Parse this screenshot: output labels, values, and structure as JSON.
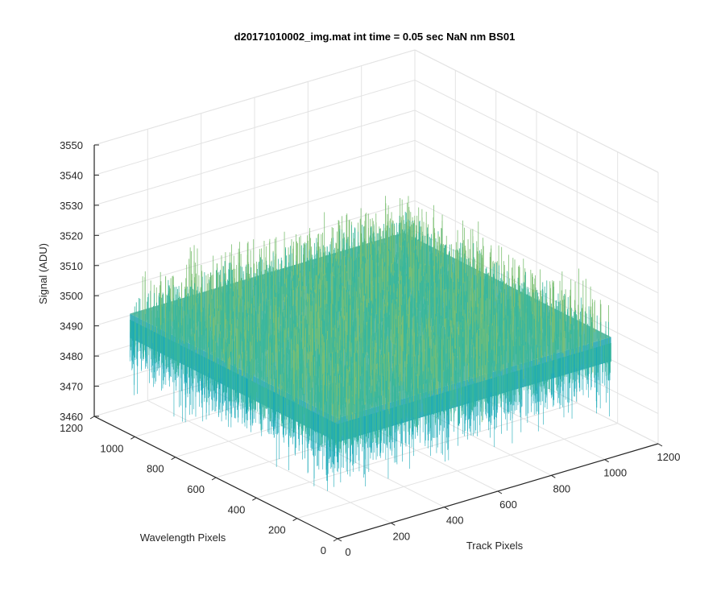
{
  "chart_data": {
    "type": "surface",
    "title": "d20171010002_img.mat int time = 0.05 sec  NaN nm BS01",
    "xlabel": "Track Pixels",
    "ylabel": "Wavelength Pixels",
    "zlabel": "Signal (ADU)",
    "xlim": [
      0,
      1200
    ],
    "ylim": [
      0,
      1200
    ],
    "zlim": [
      3460,
      3550
    ],
    "x_ticks": [
      "0",
      "200",
      "400",
      "600",
      "800",
      "1000",
      "1200"
    ],
    "y_ticks": [
      "0",
      "200",
      "400",
      "600",
      "800",
      "1000",
      "1200"
    ],
    "z_ticks": [
      "3460",
      "3470",
      "3480",
      "3490",
      "3500",
      "3510",
      "3520",
      "3530",
      "3540",
      "3550"
    ],
    "grid": true,
    "surface": {
      "x_extent": [
        0,
        1024
      ],
      "y_extent": [
        0,
        1024
      ],
      "mean_signal": 3500,
      "signal_range": [
        3462,
        3540
      ],
      "colormap": [
        "#0e90c8",
        "#19a9b8",
        "#3ab79c",
        "#7cbf72",
        "#c2bf4a"
      ]
    }
  }
}
